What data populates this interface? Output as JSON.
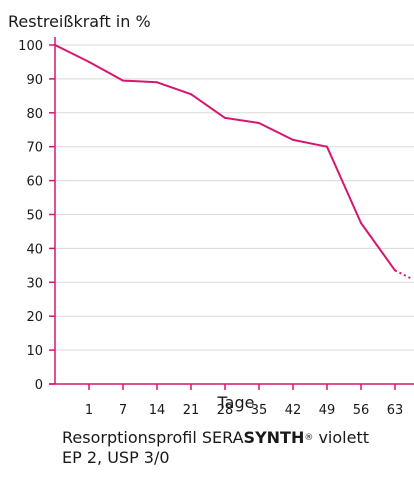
{
  "chart_data": {
    "type": "line",
    "ylabel": "Restreißkraft in %",
    "xlabel": "Tage",
    "x_ticks": [
      "1",
      "7",
      "14",
      "21",
      "28",
      "35",
      "42",
      "49",
      "56",
      "63"
    ],
    "y_ticks": [
      0,
      10,
      20,
      30,
      40,
      50,
      60,
      70,
      80,
      90,
      100
    ],
    "ylim": [
      0,
      100
    ],
    "grid": true,
    "series": [
      {
        "points": [
          {
            "x": "0",
            "y": 100
          },
          {
            "x": "1",
            "y": 95
          },
          {
            "x": "7",
            "y": 89.5
          },
          {
            "x": "14",
            "y": 89
          },
          {
            "x": "21",
            "y": 85.5
          },
          {
            "x": "28",
            "y": 78.5
          },
          {
            "x": "35",
            "y": 77
          },
          {
            "x": "42",
            "y": 72
          },
          {
            "x": "49",
            "y": 70
          },
          {
            "x": "56",
            "y": 47.5
          },
          {
            "x": "63",
            "y": 33.5
          }
        ],
        "extrapolated_end": {
          "x": "end",
          "y": 31
        },
        "color": "#d6166f"
      }
    ]
  },
  "caption": {
    "prefix": "Resorptionsprofil SERA",
    "brand_bold": "SYNTH",
    "registered": "®",
    "suffix": " violett",
    "line2": "EP 2, USP 3/0"
  }
}
